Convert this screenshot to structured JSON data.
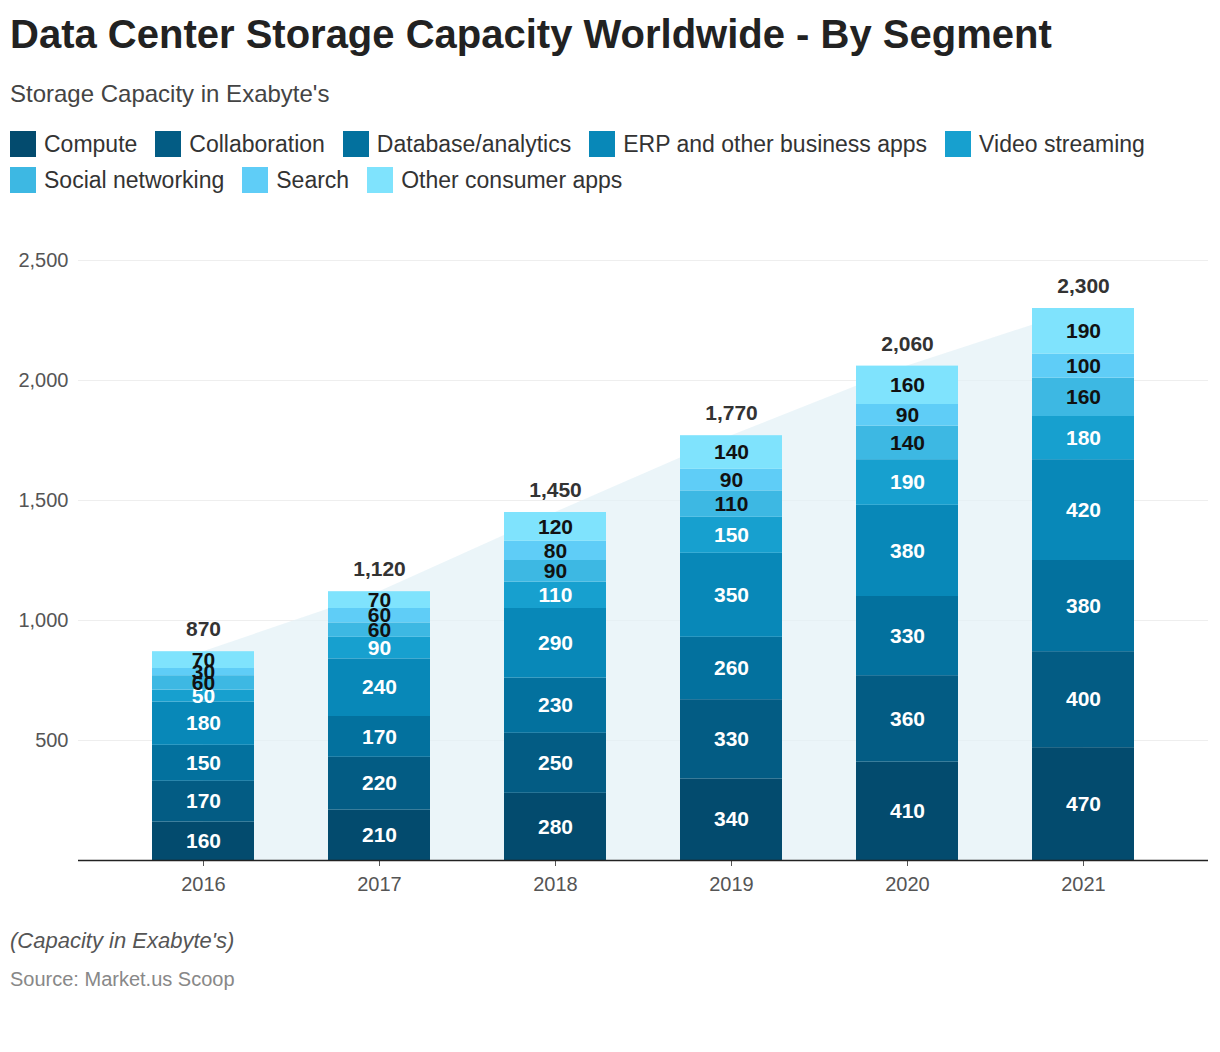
{
  "chart_data": {
    "type": "bar",
    "stacked": true,
    "data_labels": true,
    "grid": true,
    "title": "Data Center Storage Capacity Worldwide - By Segment",
    "subtitle": "Storage Capacity in Exabyte's",
    "caption": "(Capacity in Exabyte's)",
    "source": "Source: Market.us Scoop",
    "categories": [
      "2016",
      "2017",
      "2018",
      "2019",
      "2020",
      "2021"
    ],
    "ylim": [
      0,
      2500
    ],
    "yticks": [
      500,
      {
        "value": 1000,
        "label": "1,000"
      },
      {
        "value": 1500,
        "label": "1,500"
      },
      {
        "value": 2000,
        "label": "2,000"
      },
      {
        "value": 2500,
        "label": "2,500"
      }
    ],
    "series": [
      {
        "name": "Compute",
        "color": "#034b6e",
        "values": [
          160,
          210,
          280,
          340,
          410,
          470
        ]
      },
      {
        "name": "Collaboration",
        "color": "#035c84",
        "values": [
          170,
          220,
          250,
          330,
          360,
          400
        ]
      },
      {
        "name": "Database/analytics",
        "color": "#03719e",
        "values": [
          150,
          170,
          230,
          260,
          330,
          380
        ]
      },
      {
        "name": "ERP and other business apps",
        "color": "#0888b8",
        "values": [
          180,
          240,
          290,
          350,
          380,
          420
        ]
      },
      {
        "name": "Video streaming",
        "color": "#17a0cf",
        "values": [
          50,
          90,
          110,
          150,
          190,
          180
        ]
      },
      {
        "name": "Social networking",
        "color": "#3db8e3",
        "values": [
          60,
          60,
          90,
          110,
          140,
          160
        ]
      },
      {
        "name": "Search",
        "color": "#5fcdf7",
        "values": [
          30,
          60,
          80,
          90,
          90,
          100
        ]
      },
      {
        "name": "Other consumer apps",
        "color": "#7fe3fd",
        "values": [
          70,
          70,
          120,
          140,
          160,
          190
        ]
      }
    ],
    "totals": {
      "values": [
        870,
        1120,
        1450,
        1770,
        2060,
        2300
      ],
      "value_labels": [
        "870",
        "1,120",
        "1,450",
        "1,770",
        "2,060",
        "2,300"
      ]
    }
  }
}
